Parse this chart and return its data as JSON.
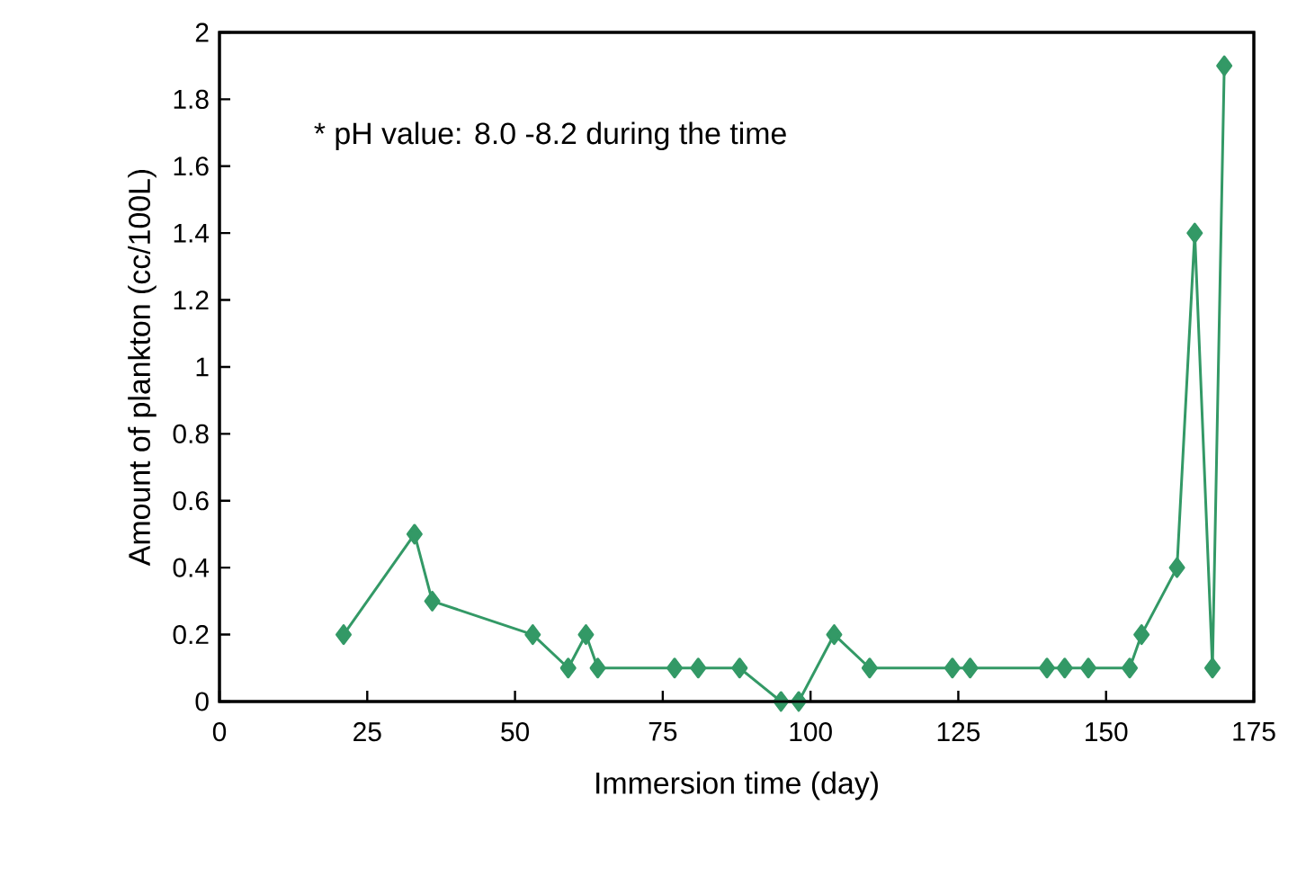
{
  "chart_data": {
    "type": "line",
    "xlabel": "Immersion time (day)",
    "ylabel": "Amount of plankton (cc/100L)",
    "annotations": [
      "* pH value: 8.0 -8.2 during the time"
    ],
    "x": [
      21,
      33,
      36,
      53,
      59,
      62,
      64,
      77,
      81,
      88,
      95,
      98,
      104,
      110,
      124,
      127,
      140,
      143,
      147,
      154,
      156,
      162,
      165,
      168,
      170
    ],
    "series": [
      {
        "color": "#339966",
        "values": [
          0.2,
          0.5,
          0.3,
          0.2,
          0.1,
          0.2,
          0.1,
          0.1,
          0.1,
          0.1,
          0,
          0,
          0.2,
          0.1,
          0.1,
          0.1,
          0.1,
          0.1,
          0.1,
          0.1,
          0.2,
          0.4,
          1.4,
          0.1,
          1.9
        ]
      }
    ],
    "xlim": [
      0,
      175
    ],
    "xticks": [
      0,
      25,
      50,
      75,
      100,
      125,
      150,
      175
    ],
    "ylim": [
      0,
      2
    ],
    "yticks": [
      0,
      0.2,
      0.4,
      0.6,
      0.8,
      1,
      1.2,
      1.4,
      1.6,
      1.8,
      2
    ],
    "marker": "diamond",
    "line_style": "solid"
  }
}
